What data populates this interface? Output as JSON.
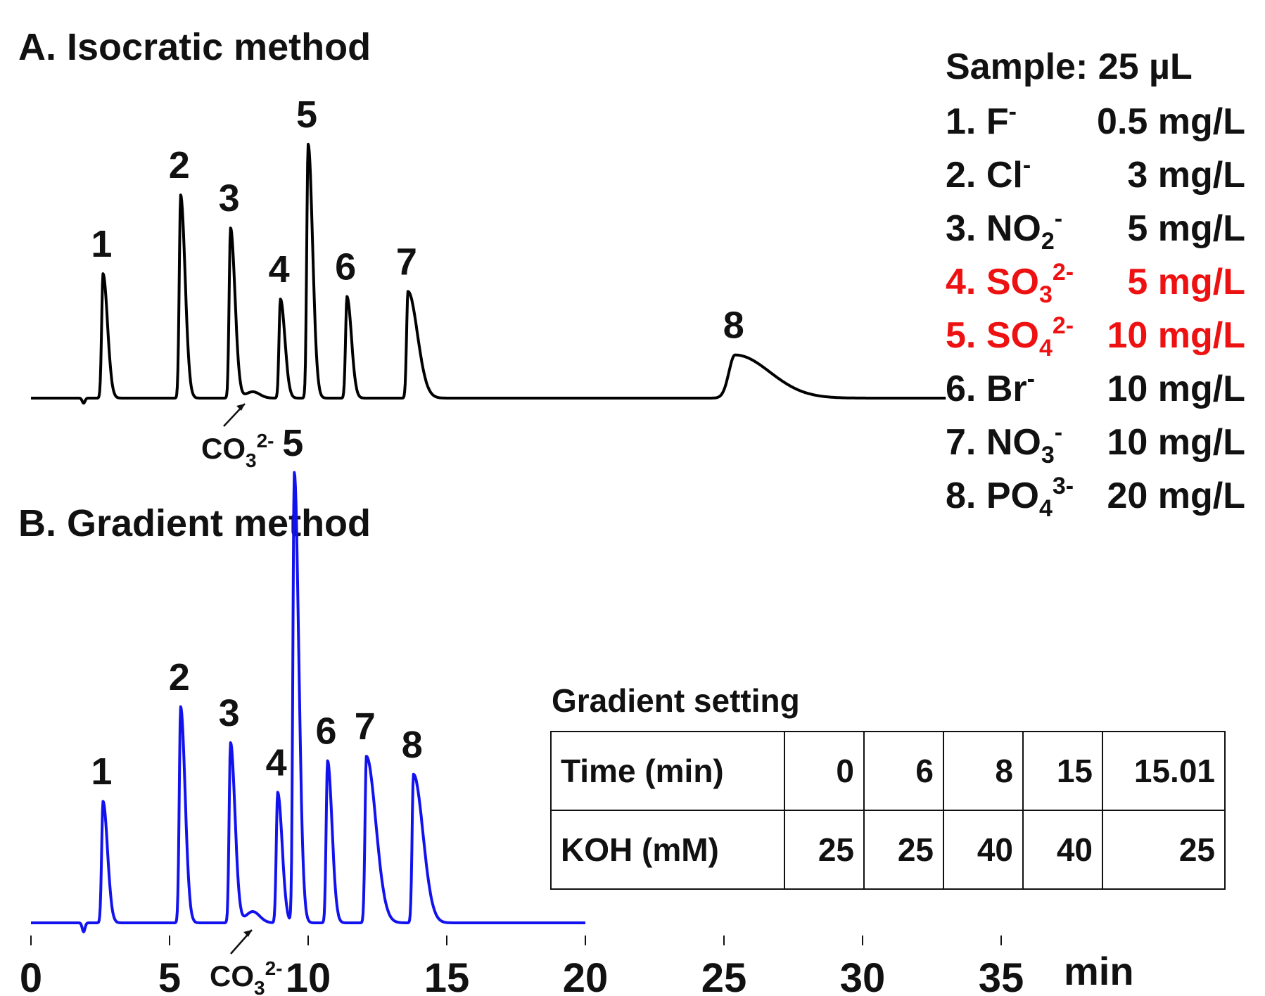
{
  "colors": {
    "trace_a": "#000000",
    "trace_b": "#1212ee",
    "highlight": "#ee1111",
    "text": "#111111"
  },
  "chart_data": {
    "type": "line",
    "xlabel": "min",
    "x_ticks": [
      0,
      5,
      10,
      15,
      20,
      25,
      30,
      35
    ],
    "xlim": [
      0,
      37
    ],
    "grid": false,
    "panels": [
      {
        "title": "A. Isocratic method",
        "color": "#000000",
        "x_end": 33,
        "peaks": [
          {
            "label": "1",
            "t": 2.6,
            "h": 0.49
          },
          {
            "label": "2",
            "t": 5.4,
            "h": 0.8
          },
          {
            "label": "3",
            "t": 7.2,
            "h": 0.67
          },
          {
            "label": "4",
            "t": 9.0,
            "h": 0.39
          },
          {
            "label": "5",
            "t": 10.0,
            "h": 1.0
          },
          {
            "label": "6",
            "t": 11.4,
            "h": 0.4
          },
          {
            "label": "7",
            "t": 13.6,
            "h": 0.42
          },
          {
            "label": "8",
            "t": 25.4,
            "h": 0.17
          }
        ],
        "annotation": "CO₃²⁻"
      },
      {
        "title": "B. Gradient method",
        "color": "#1212ee",
        "x_end": 20,
        "peaks": [
          {
            "label": "1",
            "t": 2.6,
            "h": 0.27
          },
          {
            "label": "2",
            "t": 5.4,
            "h": 0.48
          },
          {
            "label": "3",
            "t": 7.2,
            "h": 0.4
          },
          {
            "label": "4",
            "t": 8.9,
            "h": 0.29
          },
          {
            "label": "5",
            "t": 9.5,
            "h": 1.0
          },
          {
            "label": "6",
            "t": 10.7,
            "h": 0.36
          },
          {
            "label": "7",
            "t": 12.1,
            "h": 0.37
          },
          {
            "label": "8",
            "t": 13.8,
            "h": 0.33
          }
        ],
        "annotation": "CO₃²⁻"
      }
    ]
  },
  "legend": {
    "header": "Sample: 25 µL",
    "items": [
      {
        "num": "1.",
        "ion": "F",
        "sub": "",
        "sup": "-",
        "conc": "0.5 mg/L",
        "highlight": false
      },
      {
        "num": "2.",
        "ion": "Cl",
        "sub": "",
        "sup": "-",
        "conc": "3 mg/L",
        "highlight": false
      },
      {
        "num": "3.",
        "ion": "NO",
        "sub": "2",
        "sup": "-",
        "conc": "5 mg/L",
        "highlight": false
      },
      {
        "num": "4.",
        "ion": "SO",
        "sub": "3",
        "sup": "2-",
        "conc": "5 mg/L",
        "highlight": true
      },
      {
        "num": "5.",
        "ion": "SO",
        "sub": "4",
        "sup": "2-",
        "conc": "10 mg/L",
        "highlight": true
      },
      {
        "num": "6.",
        "ion": "Br",
        "sub": "",
        "sup": "-",
        "conc": "10 mg/L",
        "highlight": false
      },
      {
        "num": "7.",
        "ion": "NO",
        "sub": "3",
        "sup": "-",
        "conc": "10 mg/L",
        "highlight": false
      },
      {
        "num": "8.",
        "ion": "PO",
        "sub": "4",
        "sup": "3-",
        "conc": "20 mg/L",
        "highlight": false
      }
    ]
  },
  "gradient_table": {
    "title": "Gradient setting",
    "rows": [
      {
        "label": "Time (min)",
        "values": [
          "0",
          "6",
          "8",
          "15",
          "15.01"
        ]
      },
      {
        "label": "KOH (mM)",
        "values": [
          "25",
          "25",
          "40",
          "40",
          "25"
        ]
      }
    ]
  }
}
